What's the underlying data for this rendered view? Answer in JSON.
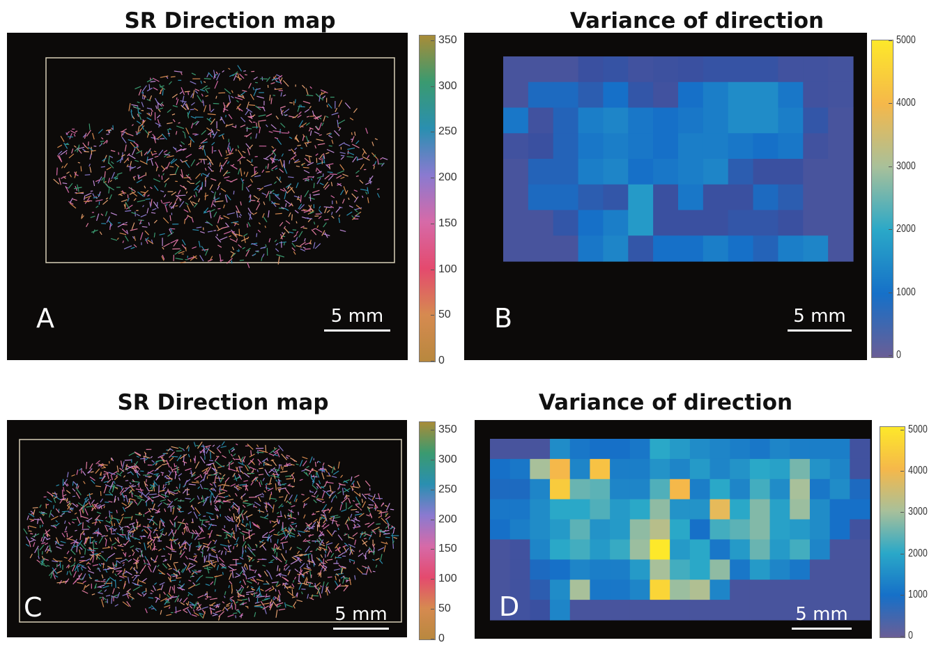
{
  "panels": {
    "a": {
      "title": "SR Direction map",
      "label": "A",
      "scale": "5 mm"
    },
    "b": {
      "title": "Variance of direction",
      "label": "B",
      "scale": "5 mm"
    },
    "c": {
      "title": "SR Direction map",
      "label": "C",
      "scale": "5 mm"
    },
    "d": {
      "title": "Variance of direction",
      "label": "D",
      "scale": "5 mm"
    }
  },
  "colorbars": {
    "direction": {
      "ticks": [
        "350",
        "300",
        "250",
        "200",
        "150",
        "100",
        "50",
        "0"
      ],
      "colors": [
        "#a88c38",
        "#3a9a70",
        "#2a8fb0",
        "#8a7ad0",
        "#d66aa8",
        "#e44a6e",
        "#d68a50",
        "#b8883e"
      ]
    },
    "variance": {
      "ticks": [
        "5000",
        "4000",
        "3000",
        "2000",
        "1000",
        "0"
      ],
      "colors": [
        "#fde82a",
        "#f5b84a",
        "#a8c09a",
        "#2aa8c8",
        "#1670c8",
        "#6a5e96"
      ]
    }
  },
  "chart_data": [
    {
      "type": "heatmap",
      "panel": "B",
      "title": "Variance of direction",
      "value_range": [
        0,
        5000
      ],
      "colorbar_ticks": [
        0,
        1000,
        2000,
        3000,
        4000,
        5000
      ],
      "values": [
        [
          500,
          500,
          500,
          700,
          750,
          600,
          650,
          700,
          750,
          750,
          750,
          600,
          600,
          550
        ],
        [
          500,
          1100,
          1100,
          900,
          1200,
          800,
          600,
          1200,
          1400,
          1600,
          1600,
          1300,
          600,
          550
        ],
        [
          1300,
          600,
          1000,
          1400,
          1500,
          1300,
          1200,
          1300,
          1400,
          1600,
          1600,
          1400,
          800,
          500
        ],
        [
          600,
          700,
          1000,
          1300,
          1400,
          1300,
          1200,
          1400,
          1400,
          1300,
          1200,
          1300,
          600,
          500
        ],
        [
          500,
          1000,
          1000,
          1400,
          1500,
          1200,
          1300,
          1400,
          1500,
          900,
          700,
          700,
          500,
          500
        ],
        [
          500,
          1100,
          1100,
          900,
          800,
          1800,
          700,
          1300,
          700,
          700,
          1100,
          900,
          500,
          500
        ],
        [
          500,
          500,
          800,
          1200,
          1400,
          1800,
          700,
          700,
          700,
          800,
          800,
          700,
          500,
          500
        ],
        [
          500,
          500,
          500,
          1300,
          1500,
          800,
          1200,
          1200,
          1400,
          1200,
          1000,
          1400,
          1500,
          500
        ]
      ]
    },
    {
      "type": "heatmap",
      "panel": "D",
      "title": "Variance of direction",
      "value_range": [
        0,
        5000
      ],
      "colorbar_ticks": [
        0,
        1000,
        2000,
        3000,
        4000,
        5000
      ],
      "values": [
        [
          500,
          500,
          500,
          1600,
          1300,
          1200,
          1200,
          1300,
          2000,
          1800,
          1600,
          1500,
          1400,
          1300,
          1500,
          1400,
          1400,
          1400,
          600
        ],
        [
          1200,
          1300,
          3000,
          4000,
          1500,
          4200,
          1400,
          1400,
          1700,
          1500,
          1800,
          1500,
          1700,
          2000,
          1900,
          2600,
          1700,
          1500,
          600
        ],
        [
          1100,
          1100,
          1500,
          4400,
          2500,
          2400,
          1500,
          1500,
          2300,
          4000,
          1400,
          2000,
          1500,
          2200,
          1600,
          3000,
          1300,
          1600,
          1100
        ],
        [
          1300,
          1300,
          1600,
          2000,
          2000,
          2300,
          1800,
          2000,
          2800,
          1700,
          1700,
          3800,
          2000,
          2700,
          1900,
          2900,
          1600,
          1200,
          1200
        ],
        [
          1200,
          1400,
          1600,
          1800,
          2400,
          1700,
          1800,
          2800,
          3200,
          2000,
          1200,
          2200,
          2400,
          2700,
          1900,
          1800,
          1600,
          1200,
          600
        ],
        [
          500,
          600,
          1500,
          2000,
          2200,
          1800,
          2100,
          2900,
          5000,
          1800,
          2000,
          1300,
          1800,
          2500,
          1800,
          2200,
          1500,
          500,
          500
        ],
        [
          500,
          600,
          1100,
          1200,
          1500,
          1400,
          1400,
          1800,
          3000,
          2200,
          2000,
          2800,
          1300,
          1800,
          1500,
          1300,
          500,
          500,
          500
        ],
        [
          500,
          600,
          900,
          1600,
          3000,
          1300,
          1300,
          1500,
          4600,
          2900,
          3100,
          1500,
          500,
          500,
          500,
          500,
          500,
          500,
          500
        ],
        [
          500,
          600,
          700,
          1500,
          500,
          500,
          500,
          500,
          500,
          500,
          500,
          500,
          500,
          500,
          500,
          500,
          500,
          500,
          500
        ]
      ]
    }
  ]
}
